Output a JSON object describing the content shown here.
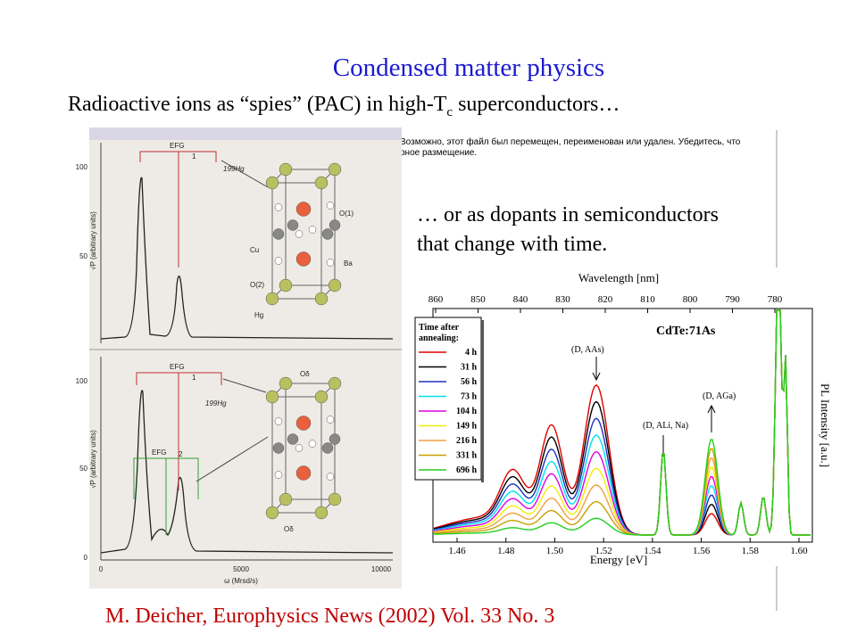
{
  "slide": {
    "title": "Condensed matter physics",
    "subtitle": {
      "text": "Radioactive ions as “spies” (PAC) in high-T",
      "sub": "c",
      "tail": " superconductors…"
    },
    "caption_lines": [
      "… or as dopants in semiconductors",
      "that change with time."
    ],
    "missing_image_message": [
      "Возможно, этот файл был перемещен, переименован или удален. Убедитесь, что",
      "рное размещение."
    ],
    "citation": "M. Deicher, Europhysics News (2002) Vol. 33 No. 3"
  },
  "left_figure": {
    "y_label": "√P  (arbitrary units)",
    "top_yticks": [
      "100",
      "50"
    ],
    "bottom_yticks": [
      "100",
      "50",
      "0"
    ],
    "xticks": [
      "0",
      "5000",
      "10000"
    ],
    "x_label": "ω (Mrsd/s)",
    "efg": "EFG",
    "one": "1",
    "two": "2",
    "isotope": "199Hg",
    "atoms_top": [
      "O(1)",
      "Cu",
      "Ba",
      "O(2)",
      "Hg"
    ],
    "atoms_bottom": [
      "Oδ",
      "Oδ"
    ]
  },
  "right_figure": {
    "top_axis_label": "Wavelength [nm]",
    "top_ticks": [
      "860",
      "850",
      "840",
      "830",
      "820",
      "810",
      "800",
      "790",
      "780"
    ],
    "bottom_ticks": [
      "1.46",
      "1.48",
      "1.50",
      "1.52",
      "1.54",
      "1.56",
      "1.58",
      "1.60"
    ],
    "x_label": "Energy [eV]",
    "y_label": "PL Intensity [a.u.]",
    "sample": "CdTe:71As",
    "peaks": [
      "(D, AAs)",
      "(D, ALi, Na)",
      "(D, AGa)"
    ],
    "legend_title": [
      "Time after",
      "annealing:"
    ],
    "legend": [
      {
        "name": "4 h",
        "color": "#e00000"
      },
      {
        "name": "31 h",
        "color": "#000000"
      },
      {
        "name": "56 h",
        "color": "#2030c0"
      },
      {
        "name": "73 h",
        "color": "#00e0f0"
      },
      {
        "name": "104 h",
        "color": "#e000e0"
      },
      {
        "name": "149 h",
        "color": "#f0f000"
      },
      {
        "name": "216 h",
        "color": "#f0a040"
      },
      {
        "name": "331 h",
        "color": "#c8a000"
      },
      {
        "name": "696 h",
        "color": "#20d020"
      }
    ]
  }
}
